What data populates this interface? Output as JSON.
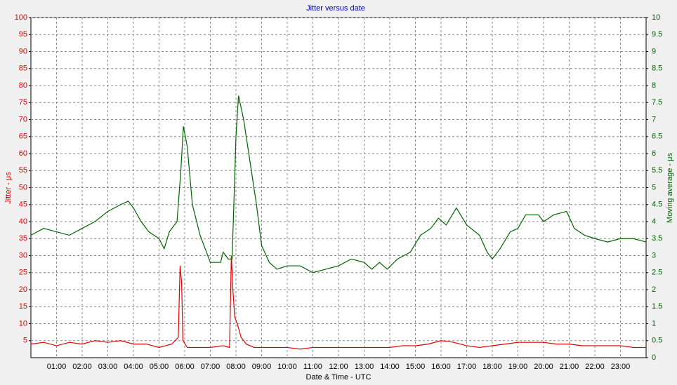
{
  "chart_data": {
    "type": "line",
    "title": "Jitter versus date",
    "x_label": "Date & Time - UTC",
    "y_label": "Jitter - μs",
    "y2_label": "Moving average - μs",
    "xlim": [
      0,
      24
    ],
    "xticks": [
      {
        "value": 1,
        "label": "01:00"
      },
      {
        "value": 2,
        "label": "02:00"
      },
      {
        "value": 3,
        "label": "03:00"
      },
      {
        "value": 4,
        "label": "04:00"
      },
      {
        "value": 5,
        "label": "05:00"
      },
      {
        "value": 6,
        "label": "06:00"
      },
      {
        "value": 7,
        "label": "07:00"
      },
      {
        "value": 8,
        "label": "08:00"
      },
      {
        "value": 9,
        "label": "09:00"
      },
      {
        "value": 10,
        "label": "10:00"
      },
      {
        "value": 11,
        "label": "11:00"
      },
      {
        "value": 12,
        "label": "12:00"
      },
      {
        "value": 13,
        "label": "13:00"
      },
      {
        "value": 14,
        "label": "14:00"
      },
      {
        "value": 15,
        "label": "15:00"
      },
      {
        "value": 16,
        "label": "16:00"
      },
      {
        "value": 17,
        "label": "17:00"
      },
      {
        "value": 18,
        "label": "18:00"
      },
      {
        "value": 19,
        "label": "19:00"
      },
      {
        "value": 20,
        "label": "20:00"
      },
      {
        "value": 21,
        "label": "21:00"
      },
      {
        "value": 22,
        "label": "22:00"
      },
      {
        "value": 23,
        "label": "23:00"
      }
    ],
    "ylim": [
      0,
      100
    ],
    "yticks": [
      5,
      10,
      15,
      20,
      25,
      30,
      35,
      40,
      45,
      50,
      55,
      60,
      65,
      70,
      75,
      80,
      85,
      90,
      95,
      100
    ],
    "y2lim": [
      0,
      10
    ],
    "y2ticks": [
      0,
      0.5,
      1,
      1.5,
      2,
      2.5,
      3,
      3.5,
      4,
      4.5,
      5,
      5.5,
      6,
      6.5,
      7,
      7.5,
      8,
      8.5,
      9,
      9.5,
      10
    ],
    "grid": true,
    "series": [
      {
        "name": "Jitter",
        "color": "#e00000",
        "axis": "y",
        "x": [
          0,
          0.5,
          1,
          1.5,
          2,
          2.5,
          3,
          3.5,
          4,
          4.5,
          5,
          5.5,
          5.75,
          5.82,
          5.88,
          5.93,
          6.1,
          6.5,
          7,
          7.5,
          7.75,
          7.82,
          7.88,
          7.95,
          8.05,
          8.2,
          8.4,
          8.7,
          9,
          9.5,
          10,
          10.5,
          11,
          11.5,
          12,
          12.5,
          13,
          13.5,
          14,
          14.5,
          15,
          15.5,
          16,
          16.5,
          17,
          17.5,
          18,
          18.5,
          19,
          19.5,
          20,
          20.5,
          21,
          21.5,
          22,
          22.5,
          23,
          23.5,
          24
        ],
        "values": [
          4,
          4.5,
          3.5,
          4.5,
          4,
          5,
          4.5,
          5,
          4,
          4,
          3,
          4,
          6,
          27,
          22,
          5,
          3,
          3,
          3,
          3.5,
          3,
          30,
          20,
          12,
          10,
          6,
          4,
          3,
          3,
          3,
          3,
          2.5,
          3,
          3,
          3,
          3,
          3,
          3,
          3,
          3.5,
          3.5,
          4,
          5,
          4.5,
          3.5,
          3,
          3.5,
          4,
          4.5,
          4.5,
          4.5,
          4,
          4,
          3.5,
          3.5,
          3.5,
          3.5,
          3,
          3
        ]
      },
      {
        "name": "Moving average",
        "color": "#006400",
        "axis": "y2",
        "x": [
          0,
          0.5,
          1,
          1.5,
          2,
          2.5,
          3,
          3.5,
          3.8,
          4,
          4.3,
          4.6,
          5,
          5.2,
          5.4,
          5.7,
          5.85,
          5.95,
          6.1,
          6.3,
          6.6,
          7,
          7.4,
          7.5,
          7.7,
          7.85,
          8,
          8.1,
          8.3,
          8.6,
          8.8,
          9,
          9.3,
          9.6,
          10,
          10.5,
          11,
          11.5,
          12,
          12.5,
          13,
          13.3,
          13.6,
          13.9,
          14.3,
          14.8,
          15.2,
          15.6,
          15.9,
          16.2,
          16.6,
          17,
          17.5,
          17.8,
          18,
          18.3,
          18.7,
          19,
          19.3,
          19.8,
          20,
          20.4,
          20.9,
          21.2,
          21.6,
          22,
          22.5,
          23,
          23.5,
          24
        ],
        "values": [
          3.6,
          3.8,
          3.7,
          3.6,
          3.8,
          4,
          4.3,
          4.5,
          4.6,
          4.4,
          4,
          3.7,
          3.5,
          3.2,
          3.7,
          4,
          5.5,
          6.8,
          6.2,
          4.5,
          3.6,
          2.8,
          2.8,
          3.1,
          2.9,
          2.9,
          6.5,
          7.7,
          7,
          5.5,
          4.5,
          3.3,
          2.8,
          2.6,
          2.7,
          2.7,
          2.5,
          2.6,
          2.7,
          2.9,
          2.8,
          2.6,
          2.8,
          2.6,
          2.9,
          3.1,
          3.6,
          3.8,
          4.1,
          3.9,
          4.4,
          3.9,
          3.6,
          3.1,
          2.9,
          3.2,
          3.7,
          3.8,
          4.2,
          4.2,
          4,
          4.2,
          4.3,
          3.8,
          3.6,
          3.5,
          3.4,
          3.5,
          3.5,
          3.4
        ]
      }
    ]
  }
}
